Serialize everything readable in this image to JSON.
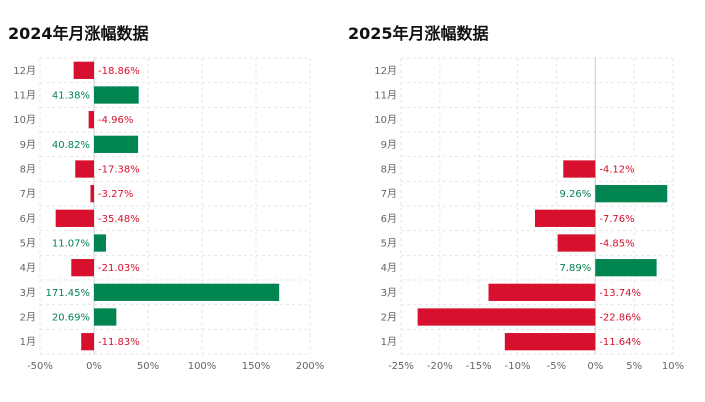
{
  "chart_data": [
    {
      "type": "bar",
      "orientation": "horizontal",
      "title": "2024年月涨幅数据",
      "categories": [
        "1月",
        "2月",
        "3月",
        "4月",
        "5月",
        "6月",
        "7月",
        "8月",
        "9月",
        "10月",
        "11月",
        "12月"
      ],
      "values": [
        -11.83,
        20.69,
        171.45,
        -21.03,
        11.07,
        -35.48,
        -3.27,
        -17.38,
        40.82,
        -4.96,
        41.38,
        -18.86
      ],
      "labels": [
        "-11.83%",
        "20.69%",
        "171.45%",
        "-21.03%",
        "11.07%",
        "-35.48%",
        "-3.27%",
        "-17.38%",
        "40.82%",
        "-4.96%",
        "41.38%",
        "-18.86%"
      ],
      "xlim": [
        -50,
        200
      ],
      "xticks": [
        -50,
        0,
        50,
        100,
        150,
        200
      ],
      "xtick_labels": [
        "-50%",
        "0%",
        "50%",
        "100%",
        "150%",
        "200%"
      ],
      "grid": true,
      "colors": {
        "positive": "#008450",
        "negative": "#d7102e"
      }
    },
    {
      "type": "bar",
      "orientation": "horizontal",
      "title": "2025年月涨幅数据",
      "categories": [
        "1月",
        "2月",
        "3月",
        "4月",
        "5月",
        "6月",
        "7月",
        "8月",
        "9月",
        "10月",
        "11月",
        "12月"
      ],
      "values": [
        -11.64,
        -22.86,
        -13.74,
        7.89,
        -4.85,
        -7.76,
        9.26,
        -4.12,
        null,
        null,
        null,
        null
      ],
      "labels": [
        "-11.64%",
        "-22.86%",
        "-13.74%",
        "7.89%",
        "-4.85%",
        "-7.76%",
        "9.26%",
        "-4.12%",
        "",
        "",
        "",
        ""
      ],
      "xlim": [
        -25,
        10
      ],
      "xticks": [
        -25,
        -20,
        -15,
        -10,
        -5,
        0,
        5,
        10
      ],
      "xtick_labels": [
        "-25%",
        "-20%",
        "-15%",
        "-10%",
        "-5%",
        "0%",
        "5%",
        "10%"
      ],
      "grid": true,
      "colors": {
        "positive": "#008450",
        "negative": "#d7102e"
      }
    }
  ]
}
